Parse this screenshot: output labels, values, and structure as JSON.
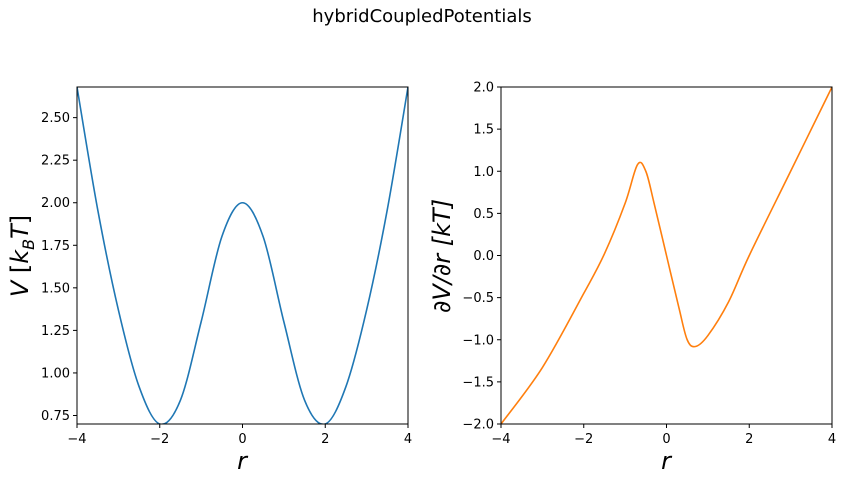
{
  "figure": {
    "suptitle": "hybridCoupledPotentials"
  },
  "chart_data": [
    {
      "type": "line",
      "panel": "left",
      "xlabel": "r",
      "ylabel": "V [k_BT]",
      "xlim": [
        -4,
        4
      ],
      "ylim": [
        0.7,
        2.68
      ],
      "xticks": [
        -4,
        -2,
        0,
        2,
        4
      ],
      "xtick_labels": [
        "−4",
        "−2",
        "0",
        "2",
        "4"
      ],
      "yticks": [
        0.75,
        1.0,
        1.25,
        1.5,
        1.75,
        2.0,
        2.25,
        2.5
      ],
      "ytick_labels": [
        "0.75",
        "1.00",
        "1.25",
        "1.50",
        "1.75",
        "2.00",
        "2.25",
        "2.50"
      ],
      "grid": false,
      "series": [
        {
          "color": "#1f77b4",
          "x": [
            -4.0,
            -3.5,
            -3.0,
            -2.5,
            -2.0,
            -1.5,
            -1.0,
            -0.5,
            0.0,
            0.5,
            1.0,
            1.5,
            2.0,
            2.5,
            3.0,
            3.5,
            4.0
          ],
          "y": [
            2.68,
            1.96,
            1.37,
            0.92,
            0.7,
            0.84,
            1.3,
            1.8,
            2.0,
            1.8,
            1.3,
            0.84,
            0.7,
            0.92,
            1.37,
            1.96,
            2.68
          ]
        }
      ]
    },
    {
      "type": "line",
      "panel": "right",
      "xlabel": "r",
      "ylabel": "∂V/∂r [kT]",
      "xlim": [
        -4,
        4
      ],
      "ylim": [
        -2.0,
        2.0
      ],
      "xticks": [
        -4,
        -2,
        0,
        2,
        4
      ],
      "xtick_labels": [
        "−4",
        "−2",
        "0",
        "2",
        "4"
      ],
      "yticks": [
        -2.0,
        -1.5,
        -1.0,
        -0.5,
        0.0,
        0.5,
        1.0,
        1.5,
        2.0
      ],
      "ytick_labels": [
        "−2.0",
        "−1.5",
        "−1.0",
        "−0.5",
        "0.0",
        "0.5",
        "1.0",
        "1.5",
        "2.0"
      ],
      "grid": false,
      "series": [
        {
          "color": "#ff7f0e",
          "x": [
            -4.0,
            -3.0,
            -2.0,
            -1.5,
            -1.0,
            -0.7,
            -0.5,
            -0.3,
            0.0,
            0.3,
            0.5,
            0.7,
            1.0,
            1.5,
            2.0,
            3.0,
            4.0
          ],
          "y": [
            -2.0,
            -1.33,
            -0.45,
            0.02,
            0.62,
            1.08,
            1.0,
            0.62,
            0.0,
            -0.62,
            -1.0,
            -1.08,
            -0.95,
            -0.55,
            0.0,
            1.0,
            2.0
          ]
        }
      ]
    }
  ]
}
